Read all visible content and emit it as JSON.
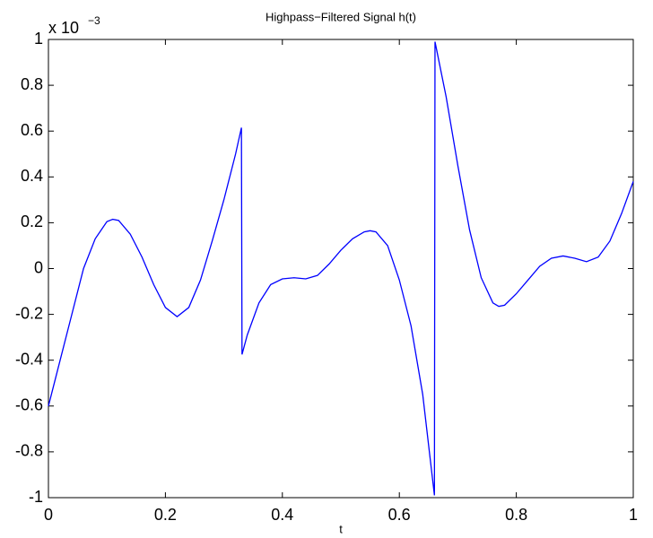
{
  "chart_data": {
    "type": "line",
    "title": "Highpass−Filtered Signal h(t)",
    "x_label": "t",
    "y_scale_label": {
      "base": "x 10",
      "exponent": "−3"
    },
    "x": [
      0,
      0.02,
      0.04,
      0.06,
      0.08,
      0.1,
      0.11,
      0.12,
      0.14,
      0.16,
      0.18,
      0.2,
      0.22,
      0.24,
      0.26,
      0.28,
      0.3,
      0.32,
      0.33,
      0.331,
      0.34,
      0.36,
      0.38,
      0.4,
      0.42,
      0.44,
      0.46,
      0.48,
      0.5,
      0.52,
      0.54,
      0.55,
      0.56,
      0.58,
      0.6,
      0.62,
      0.64,
      0.66,
      0.661,
      0.68,
      0.7,
      0.72,
      0.74,
      0.76,
      0.77,
      0.78,
      0.8,
      0.82,
      0.84,
      0.86,
      0.88,
      0.9,
      0.92,
      0.94,
      0.96,
      0.98,
      1.0
    ],
    "series": [
      {
        "color": "#0000ff",
        "values": [
          -0.6,
          -0.4,
          -0.2,
          0.0,
          0.13,
          0.205,
          0.215,
          0.21,
          0.15,
          0.05,
          -0.07,
          -0.17,
          -0.21,
          -0.17,
          -0.05,
          0.12,
          0.3,
          0.5,
          0.615,
          -0.375,
          -0.29,
          -0.15,
          -0.07,
          -0.045,
          -0.04,
          -0.045,
          -0.03,
          0.02,
          0.08,
          0.13,
          0.16,
          0.165,
          0.16,
          0.1,
          -0.05,
          -0.25,
          -0.55,
          -0.99,
          0.99,
          0.75,
          0.45,
          0.17,
          -0.04,
          -0.15,
          -0.165,
          -0.16,
          -0.11,
          -0.05,
          0.01,
          0.045,
          0.055,
          0.045,
          0.03,
          0.05,
          0.12,
          0.24,
          0.38
        ]
      }
    ],
    "xlim": [
      0,
      1
    ],
    "xticks": [
      0,
      0.2,
      0.4,
      0.6,
      0.8,
      1
    ],
    "ylim": [
      -1,
      1
    ],
    "yticks": [
      -1,
      -0.8,
      -0.6,
      -0.4,
      -0.2,
      0,
      0.2,
      0.4,
      0.6,
      0.8,
      1
    ],
    "grid": false
  }
}
